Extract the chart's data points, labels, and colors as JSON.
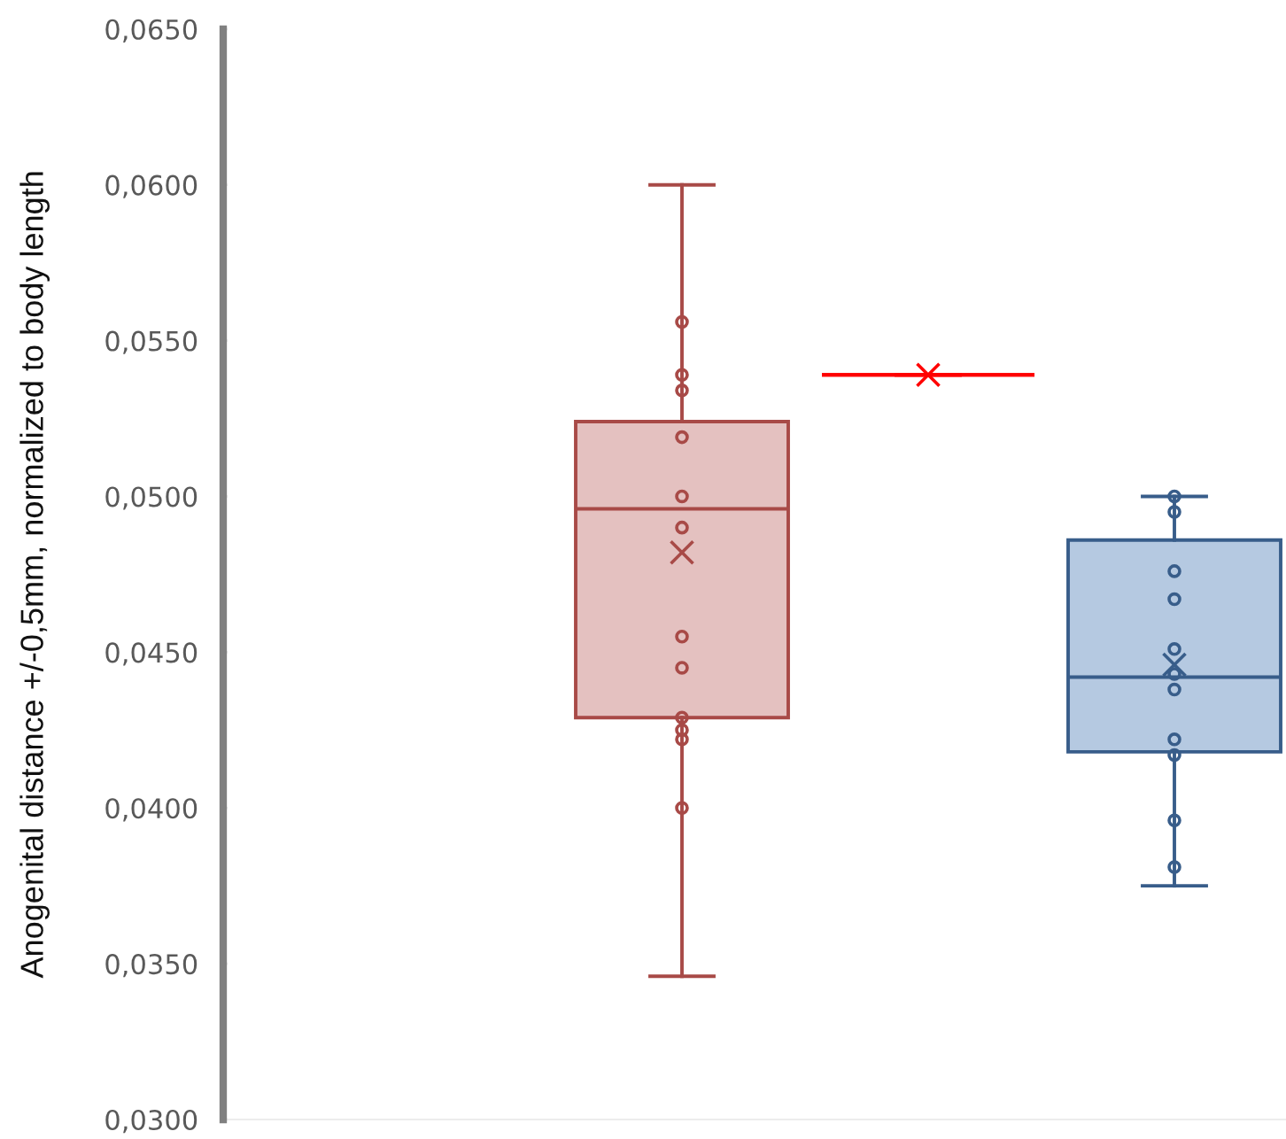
{
  "chart_data": {
    "type": "box",
    "ylabel": "Anogenital distance +/-0,5mm, normalized to body length",
    "categories": [
      null
    ],
    "ylim": [
      0.03,
      0.065
    ],
    "yticks": [
      {
        "value": 0.03,
        "label": "0,0300"
      },
      {
        "value": 0.035,
        "label": "0,0350"
      },
      {
        "value": 0.04,
        "label": "0,0400"
      },
      {
        "value": 0.045,
        "label": "0,0450"
      },
      {
        "value": 0.05,
        "label": "0,0500"
      },
      {
        "value": 0.055,
        "label": "0,0550"
      },
      {
        "value": 0.06,
        "label": "0,0600"
      },
      {
        "value": 0.065,
        "label": "0,0650"
      }
    ],
    "tick_labels": "y",
    "marker": "circle",
    "series": [
      {
        "color": "#a84a47",
        "boxes": [
          {
            "low": 0.0346,
            "q1": 0.0429,
            "median": 0.0496,
            "q3": 0.0524,
            "high": 0.06,
            "mean": 0.0482,
            "outliers": [
              0.0556,
              0.0539,
              0.0534,
              0.0519,
              0.05,
              0.049,
              0.0455,
              0.0445,
              0.0429,
              0.0425,
              0.0422,
              0.04
            ]
          }
        ]
      },
      {
        "color": "#ff0000",
        "boxes": [
          {
            "low": 0.0539,
            "q1": 0.0539,
            "median": 0.0539,
            "q3": 0.0539,
            "high": 0.0539,
            "mean": 0.0539
          }
        ]
      },
      {
        "color": "#385d8a",
        "boxes": [
          {
            "low": 0.0375,
            "q1": 0.0418,
            "median": 0.0442,
            "q3": 0.0486,
            "high": 0.05,
            "mean": 0.0446,
            "outliers": [
              0.05,
              0.0495,
              0.0476,
              0.0467,
              0.0451,
              0.0443,
              0.0438,
              0.0422,
              0.0417,
              0.0396,
              0.0381
            ]
          }
        ]
      }
    ]
  }
}
